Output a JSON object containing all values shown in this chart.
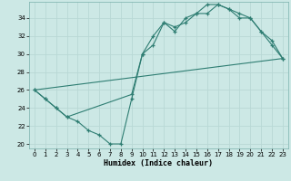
{
  "bg_color": "#cce8e5",
  "grid_color": "#b8d8d5",
  "line_color": "#2e7d72",
  "xlabel": "Humidex (Indice chaleur)",
  "xlim": [
    -0.5,
    23.5
  ],
  "ylim": [
    19.5,
    35.8
  ],
  "xticks": [
    0,
    1,
    2,
    3,
    4,
    5,
    6,
    7,
    8,
    9,
    10,
    11,
    12,
    13,
    14,
    15,
    16,
    17,
    18,
    19,
    20,
    21,
    22,
    23
  ],
  "yticks": [
    20,
    22,
    24,
    26,
    28,
    30,
    32,
    34
  ],
  "line1_x": [
    0,
    1,
    2,
    3,
    4,
    5,
    6,
    7,
    8,
    9,
    10,
    11,
    12,
    13,
    14,
    15,
    16,
    17,
    18,
    19,
    20,
    21,
    22,
    23
  ],
  "line1_y": [
    26,
    25,
    24,
    23,
    22.5,
    21.5,
    21,
    20,
    20,
    25,
    30,
    31,
    33.5,
    33,
    33.5,
    34.5,
    34.5,
    35.5,
    35,
    34,
    34,
    32.5,
    31,
    29.5
  ],
  "line2_x": [
    0,
    1,
    2,
    3,
    9,
    10,
    11,
    12,
    13,
    14,
    15,
    16,
    17,
    18,
    19,
    20,
    21,
    22,
    23
  ],
  "line2_y": [
    26,
    25,
    24,
    23,
    25.5,
    30,
    32,
    33.5,
    32.5,
    34,
    34.5,
    35.5,
    35.5,
    35,
    34.5,
    34,
    32.5,
    31.5,
    29.5
  ],
  "line3_x": [
    0,
    23
  ],
  "line3_y": [
    26,
    29.5
  ]
}
